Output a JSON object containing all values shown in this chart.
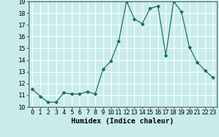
{
  "xlabel": "Humidex (Indice chaleur)",
  "x": [
    0,
    1,
    2,
    3,
    4,
    5,
    6,
    7,
    8,
    9,
    10,
    11,
    12,
    13,
    14,
    15,
    16,
    17,
    18,
    19,
    20,
    21,
    22,
    23
  ],
  "y": [
    11.5,
    10.9,
    10.4,
    10.4,
    11.2,
    11.1,
    11.1,
    11.3,
    11.1,
    13.2,
    13.9,
    15.6,
    19.0,
    17.5,
    17.1,
    18.4,
    18.6,
    14.4,
    19.0,
    18.1,
    15.1,
    13.8,
    13.1,
    12.5
  ],
  "line_color": "#1a6b5a",
  "marker": "D",
  "marker_size": 2.5,
  "bg_color": "#c8ecec",
  "grid_color": "#ffffff",
  "ylim": [
    10,
    19
  ],
  "xlim": [
    -0.5,
    23.5
  ],
  "yticks": [
    10,
    11,
    12,
    13,
    14,
    15,
    16,
    17,
    18,
    19
  ],
  "xticks": [
    0,
    1,
    2,
    3,
    4,
    5,
    6,
    7,
    8,
    9,
    10,
    11,
    12,
    13,
    14,
    15,
    16,
    17,
    18,
    19,
    20,
    21,
    22,
    23
  ],
  "tick_label_fontsize": 6.5,
  "xlabel_fontsize": 7.5
}
